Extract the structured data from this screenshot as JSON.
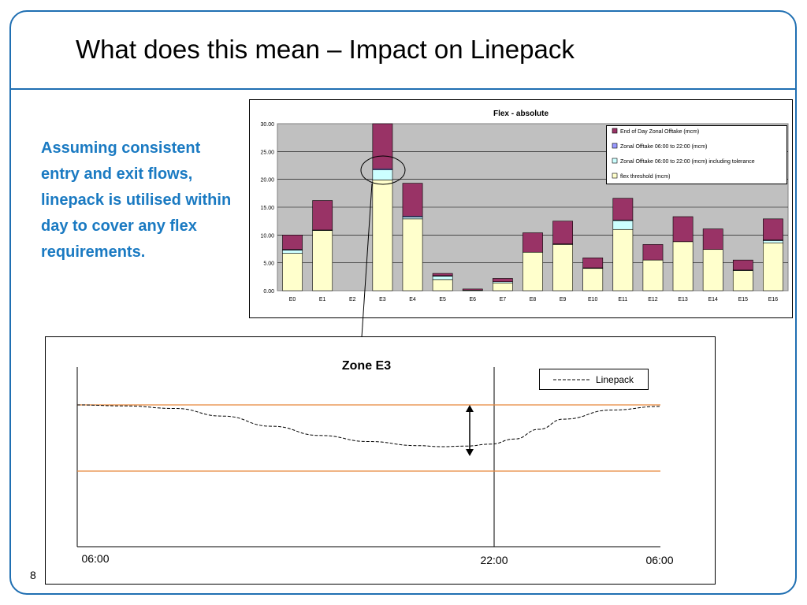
{
  "slide": {
    "title": "What does this mean – Impact on Linepack",
    "body_text": "Assuming consistent entry and exit flows, linepack is utilised within day to cover any flex requirements.",
    "page_number": "8"
  },
  "colors": {
    "frame": "#1f6fb2",
    "body_text": "#1a7ac2",
    "end_of_day": "#993366",
    "zonal_offtake": "#9999ff",
    "offtake_tolerance": "#ccffff",
    "flex_threshold": "#ffffcc",
    "plot_area": "#c0c0c0",
    "band_lines": "#e8873a"
  },
  "chart_data": [
    {
      "type": "bar",
      "stacked": true,
      "title": "Flex - absolute",
      "xlabel": "",
      "ylabel": "",
      "ylim": [
        0,
        30
      ],
      "yticks": [
        "0.00",
        "5.00",
        "10.00",
        "15.00",
        "20.00",
        "25.00",
        "30.00"
      ],
      "grid": true,
      "legend_position": "top-right",
      "categories": [
        "E0",
        "E1",
        "E2",
        "E3",
        "E4",
        "E5",
        "E6",
        "E7",
        "E8",
        "E9",
        "E10",
        "E11",
        "E12",
        "E13",
        "E14",
        "E15",
        "E16"
      ],
      "series": [
        {
          "name": "flex threshold (mcm)",
          "color": "#ffffcc",
          "values": [
            6.7,
            10.8,
            0,
            19.9,
            12.9,
            2.0,
            0.1,
            1.4,
            6.9,
            8.3,
            4.0,
            11.0,
            5.5,
            8.8,
            7.4,
            3.6,
            8.6
          ]
        },
        {
          "name": "Zonal Offtake 06:00 to 22:00 (mcm) including tolerance",
          "color": "#ccffff",
          "values": [
            0.6,
            0.1,
            0,
            1.8,
            0.3,
            0.6,
            0,
            0.2,
            0,
            0.1,
            0.1,
            1.6,
            0,
            0,
            0,
            0.1,
            0.4
          ]
        },
        {
          "name": "Zonal Offtake 06:00 to 22:00 (mcm)",
          "color": "#9999ff",
          "values": [
            0.1,
            0,
            0,
            0.2,
            0.2,
            0.1,
            0,
            0,
            0,
            0,
            0,
            0.1,
            0,
            0,
            0,
            0,
            0.1
          ]
        },
        {
          "name": "End of Day Zonal Offtake (mcm)",
          "color": "#993366",
          "values": [
            2.6,
            5.3,
            0,
            8.1,
            5.9,
            0.4,
            0.2,
            0.6,
            3.5,
            4.1,
            1.8,
            3.9,
            2.8,
            4.5,
            3.7,
            1.8,
            3.8
          ]
        }
      ]
    },
    {
      "type": "line",
      "title": "Zone E3",
      "legend_position": "top-right",
      "x_ticks": [
        "06:00",
        "22:00",
        "06:00"
      ],
      "x_hours": [
        0,
        2,
        4,
        6,
        8,
        10,
        12,
        14,
        15,
        16,
        17,
        18,
        19,
        20,
        22,
        24
      ],
      "series": [
        {
          "name": "Linepack",
          "style": "dashed",
          "values": [
            1.0,
            0.98,
            0.93,
            0.78,
            0.58,
            0.4,
            0.28,
            0.2,
            0.18,
            0.19,
            0.23,
            0.33,
            0.52,
            0.72,
            0.9,
            0.97
          ]
        }
      ],
      "upper_band": 1.0,
      "lower_band": -0.3
    }
  ]
}
